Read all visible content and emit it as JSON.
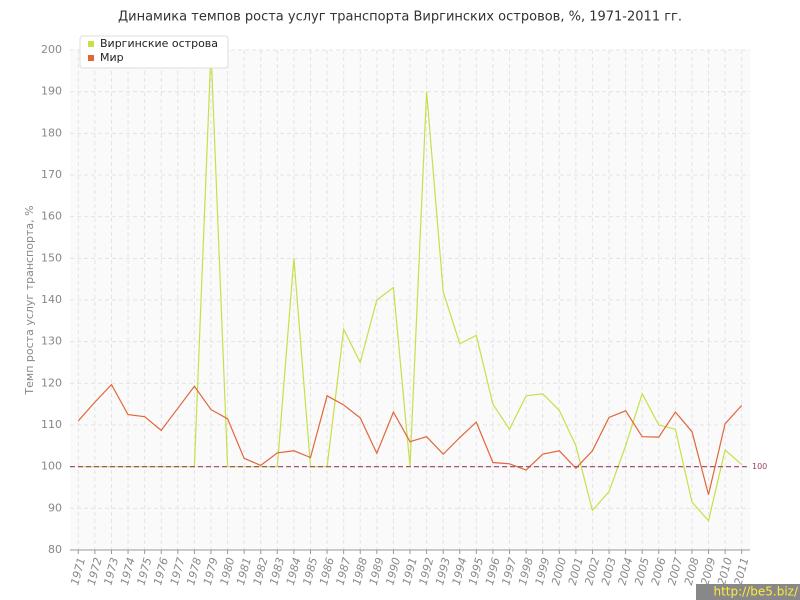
{
  "chart_data": {
    "type": "line",
    "title": "Динамика темпов роста услуг транспорта Виргинских островов, %, 1971-2011 гг.",
    "y_label": "Темп роста услуг транспорта, %",
    "categories": [
      "1971",
      "1972",
      "1973",
      "1974",
      "1975",
      "1976",
      "1977",
      "1978",
      "1979",
      "1980",
      "1981",
      "1982",
      "1983",
      "1984",
      "1985",
      "1986",
      "1987",
      "1988",
      "1989",
      "1990",
      "1991",
      "1992",
      "1993",
      "1994",
      "1995",
      "1996",
      "1997",
      "1998",
      "1999",
      "2000",
      "2001",
      "2002",
      "2003",
      "2004",
      "2005",
      "2006",
      "2007",
      "2008",
      "2009",
      "2010",
      "2011"
    ],
    "series": [
      {
        "name": "Виргинские острова",
        "color": "#c6e04a",
        "values": [
          100,
          100,
          100,
          100,
          100,
          100,
          100,
          100,
          200,
          100,
          100,
          100,
          100,
          150,
          100,
          100,
          133,
          125,
          140,
          143,
          100,
          190,
          142,
          129.5,
          131.5,
          115,
          109,
          117,
          117.5,
          113.5,
          105,
          89.5,
          94,
          105,
          117.5,
          110,
          109,
          91.5,
          87,
          104,
          100.5
        ]
      },
      {
        "name": "Мир",
        "color": "#e0663a",
        "values": [
          111,
          115.5,
          119.7,
          112.5,
          112,
          108.7,
          114,
          119.3,
          113.7,
          111.5,
          102,
          100.3,
          103.3,
          103.8,
          102.2,
          117,
          114.8,
          111.7,
          103.2,
          113.1,
          106,
          107.2,
          103,
          107,
          110.7,
          101,
          100.7,
          99.2,
          103,
          103.8,
          99.6,
          103.8,
          111.8,
          113.4,
          107.2,
          107.1,
          113.1,
          108.4,
          93.3,
          110.3,
          114.7
        ]
      }
    ],
    "ylim": [
      80,
      200
    ],
    "yticks": [
      80,
      90,
      100,
      110,
      120,
      130,
      140,
      150,
      160,
      170,
      180,
      190,
      200
    ],
    "grid": true,
    "legend": "top-left",
    "reference_line": 100,
    "reference_color": "#a0406a",
    "watermark": "http://be5.biz/"
  }
}
